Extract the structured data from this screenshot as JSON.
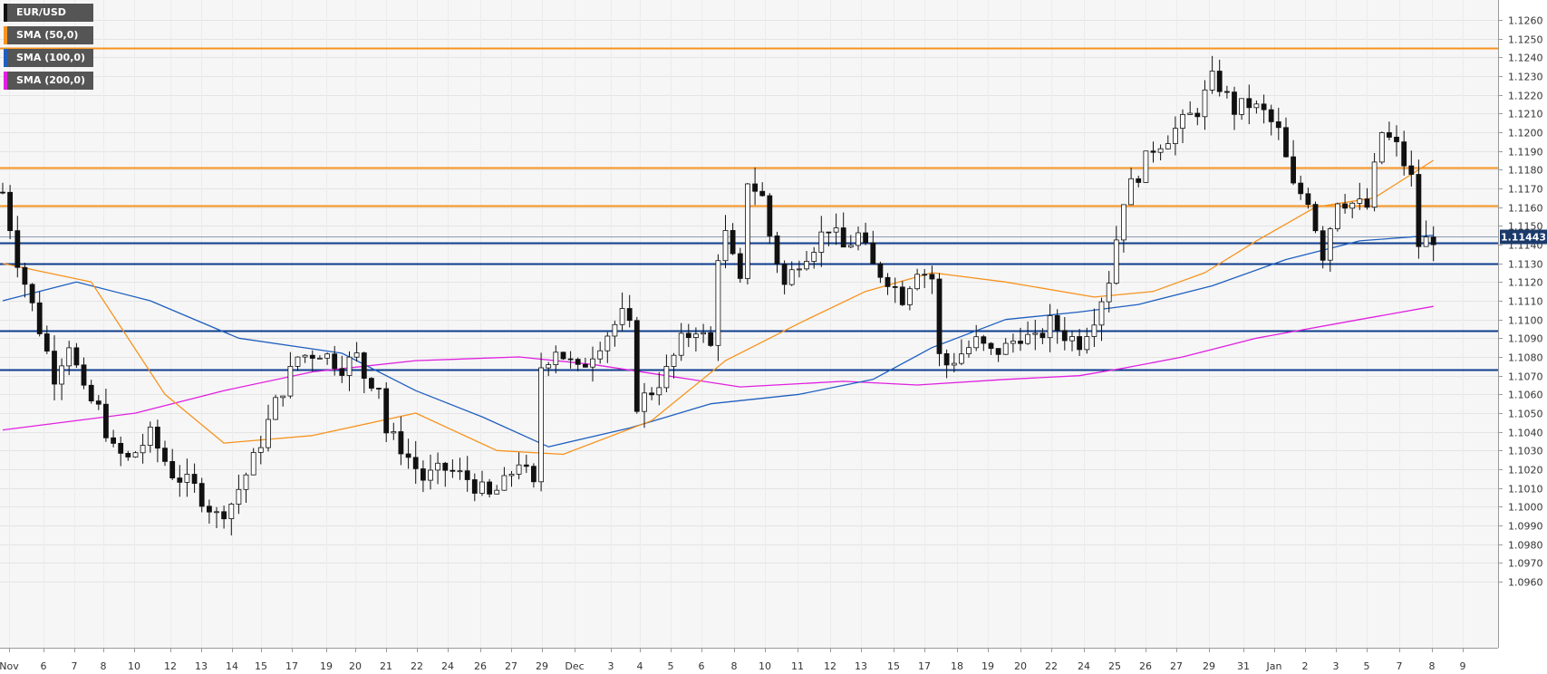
{
  "chart_data": {
    "type": "candlestick",
    "symbol": "EUR/USD",
    "ylim": [
      1.0955,
      1.1265
    ],
    "y_ticks": [
      "1.1260",
      "1.1250",
      "1.1240",
      "1.1230",
      "1.1220",
      "1.1210",
      "1.1200",
      "1.1190",
      "1.1180",
      "1.1170",
      "1.1160",
      "1.1150",
      "1.1140",
      "1.1130",
      "1.1120",
      "1.1110",
      "1.1100",
      "1.1090",
      "1.1080",
      "1.1070",
      "1.1060",
      "1.1050",
      "1.1040",
      "1.1030",
      "1.1020",
      "1.1010",
      "1.1000",
      "1.0990",
      "1.0980",
      "1.0970",
      "1.0960"
    ],
    "x_labels": [
      "Nov",
      "6",
      "7",
      "8",
      "10",
      "12",
      "13",
      "14",
      "15",
      "17",
      "19",
      "20",
      "21",
      "22",
      "24",
      "26",
      "27",
      "29",
      "Dec",
      "3",
      "4",
      "5",
      "6",
      "8",
      "10",
      "11",
      "12",
      "13",
      "15",
      "17",
      "18",
      "19",
      "20",
      "22",
      "24",
      "25",
      "26",
      "27",
      "29",
      "31",
      "Jan",
      "2",
      "3",
      "5",
      "7",
      "8",
      "9"
    ],
    "last_price": "1.11443",
    "last_price_value": 1.11443,
    "horizontal_lines": [
      {
        "level": 1.1245,
        "color": "#f7931e"
      },
      {
        "level": 1.1181,
        "color": "#f7931e"
      },
      {
        "level": 1.1161,
        "color": "#f7931e"
      },
      {
        "level": 1.1141,
        "color": "#0d3c8c"
      },
      {
        "level": 1.113,
        "color": "#0d3c8c"
      },
      {
        "level": 1.1094,
        "color": "#0d3c8c"
      },
      {
        "level": 1.1073,
        "color": "#0d3c8c"
      }
    ],
    "legend": [
      {
        "label": "EUR/USD",
        "color": "#111111"
      },
      {
        "label": "SMA (50,0)",
        "color": "#f7931e"
      },
      {
        "label": "SMA (100,0)",
        "color": "#1f5fbf"
      },
      {
        "label": "SMA (200,0)",
        "color": "#e020e0"
      }
    ],
    "close_path": [
      [
        0,
        1.1168
      ],
      [
        2,
        1.1132
      ],
      [
        5,
        1.1095
      ],
      [
        7,
        1.107
      ],
      [
        9,
        1.1088
      ],
      [
        11,
        1.106
      ],
      [
        13,
        1.1052
      ],
      [
        15,
        1.103
      ],
      [
        17,
        1.1025
      ],
      [
        20,
        1.1038
      ],
      [
        23,
        1.1018
      ],
      [
        26,
        1.101
      ],
      [
        29,
        1.0995
      ],
      [
        31,
        1.1002
      ],
      [
        34,
        1.1025
      ],
      [
        37,
        1.1055
      ],
      [
        40,
        1.108
      ],
      [
        43,
        1.1083
      ],
      [
        46,
        1.1075
      ],
      [
        48,
        1.108
      ],
      [
        49,
        1.107
      ],
      [
        51,
        1.1065
      ],
      [
        52,
        1.104
      ],
      [
        54,
        1.1032
      ],
      [
        57,
        1.1015
      ],
      [
        60,
        1.102
      ],
      [
        63,
        1.1015
      ],
      [
        66,
        1.1005
      ],
      [
        68,
        1.1012
      ],
      [
        70,
        1.1025
      ],
      [
        72,
        1.101
      ],
      [
        73,
        1.1075
      ],
      [
        75,
        1.1085
      ],
      [
        78,
        1.1072
      ],
      [
        81,
        1.1088
      ],
      [
        84,
        1.1102
      ],
      [
        85,
        1.1095
      ],
      [
        86,
        1.1055
      ],
      [
        88,
        1.1062
      ],
      [
        90,
        1.1072
      ],
      [
        92,
        1.1088
      ],
      [
        94,
        1.1096
      ],
      [
        96,
        1.1085
      ],
      [
        97,
        1.1135
      ],
      [
        98,
        1.1145
      ],
      [
        100,
        1.1118
      ],
      [
        101,
        1.1175
      ],
      [
        103,
        1.1165
      ],
      [
        104,
        1.1145
      ],
      [
        106,
        1.1118
      ],
      [
        108,
        1.1132
      ],
      [
        110,
        1.114
      ],
      [
        112,
        1.115
      ],
      [
        114,
        1.1138
      ],
      [
        116,
        1.1145
      ],
      [
        118,
        1.1128
      ],
      [
        120,
        1.1122
      ],
      [
        122,
        1.1112
      ],
      [
        124,
        1.1128
      ],
      [
        126,
        1.1122
      ],
      [
        127,
        1.108
      ],
      [
        128,
        1.1076
      ],
      [
        130,
        1.1082
      ],
      [
        132,
        1.1088
      ],
      [
        134,
        1.1082
      ],
      [
        136,
        1.1085
      ],
      [
        138,
        1.1092
      ],
      [
        140,
        1.1088
      ],
      [
        142,
        1.1098
      ],
      [
        144,
        1.1092
      ],
      [
        146,
        1.1088
      ],
      [
        148,
        1.1102
      ],
      [
        150,
        1.1122
      ],
      [
        152,
        1.1165
      ],
      [
        154,
        1.1178
      ],
      [
        156,
        1.1192
      ],
      [
        158,
        1.1198
      ],
      [
        160,
        1.1205
      ],
      [
        162,
        1.1212
      ],
      [
        164,
        1.1228
      ],
      [
        165,
        1.1225
      ],
      [
        167,
        1.1212
      ],
      [
        169,
        1.1215
      ],
      [
        171,
        1.121
      ],
      [
        173,
        1.12
      ],
      [
        175,
        1.117
      ],
      [
        177,
        1.1165
      ],
      [
        179,
        1.1135
      ],
      [
        181,
        1.1165
      ],
      [
        183,
        1.1162
      ],
      [
        185,
        1.116
      ],
      [
        187,
        1.12
      ],
      [
        189,
        1.1192
      ],
      [
        191,
        1.1175
      ],
      [
        192,
        1.114
      ],
      [
        194,
        1.1144
      ]
    ],
    "sma50": [
      [
        0,
        1.113
      ],
      [
        12,
        1.112
      ],
      [
        22,
        1.106
      ],
      [
        30,
        1.1034
      ],
      [
        42,
        1.1038
      ],
      [
        56,
        1.105
      ],
      [
        67,
        1.103
      ],
      [
        76,
        1.1028
      ],
      [
        88,
        1.1046
      ],
      [
        98,
        1.1078
      ],
      [
        108,
        1.1098
      ],
      [
        117,
        1.1115
      ],
      [
        126,
        1.1125
      ],
      [
        136,
        1.112
      ],
      [
        148,
        1.1112
      ],
      [
        156,
        1.1115
      ],
      [
        163,
        1.1125
      ],
      [
        170,
        1.1142
      ],
      [
        178,
        1.116
      ],
      [
        186,
        1.1165
      ],
      [
        194,
        1.1185
      ]
    ],
    "sma100": [
      [
        0,
        1.111
      ],
      [
        10,
        1.112
      ],
      [
        20,
        1.111
      ],
      [
        32,
        1.109
      ],
      [
        46,
        1.1082
      ],
      [
        56,
        1.1062
      ],
      [
        65,
        1.1048
      ],
      [
        74,
        1.1032
      ],
      [
        85,
        1.1042
      ],
      [
        96,
        1.1055
      ],
      [
        108,
        1.106
      ],
      [
        118,
        1.1068
      ],
      [
        126,
        1.1085
      ],
      [
        136,
        1.11
      ],
      [
        146,
        1.1104
      ],
      [
        154,
        1.1108
      ],
      [
        164,
        1.1118
      ],
      [
        174,
        1.1132
      ],
      [
        184,
        1.1142
      ],
      [
        194,
        1.1145
      ]
    ],
    "sma200": [
      [
        0,
        1.1041
      ],
      [
        18,
        1.105
      ],
      [
        30,
        1.1062
      ],
      [
        42,
        1.1072
      ],
      [
        56,
        1.1078
      ],
      [
        70,
        1.108
      ],
      [
        80,
        1.1076
      ],
      [
        90,
        1.107
      ],
      [
        100,
        1.1064
      ],
      [
        114,
        1.1067
      ],
      [
        124,
        1.1065
      ],
      [
        136,
        1.1068
      ],
      [
        146,
        1.107
      ],
      [
        152,
        1.1074
      ],
      [
        160,
        1.108
      ],
      [
        170,
        1.109
      ],
      [
        184,
        1.11
      ],
      [
        194,
        1.1107
      ]
    ]
  }
}
